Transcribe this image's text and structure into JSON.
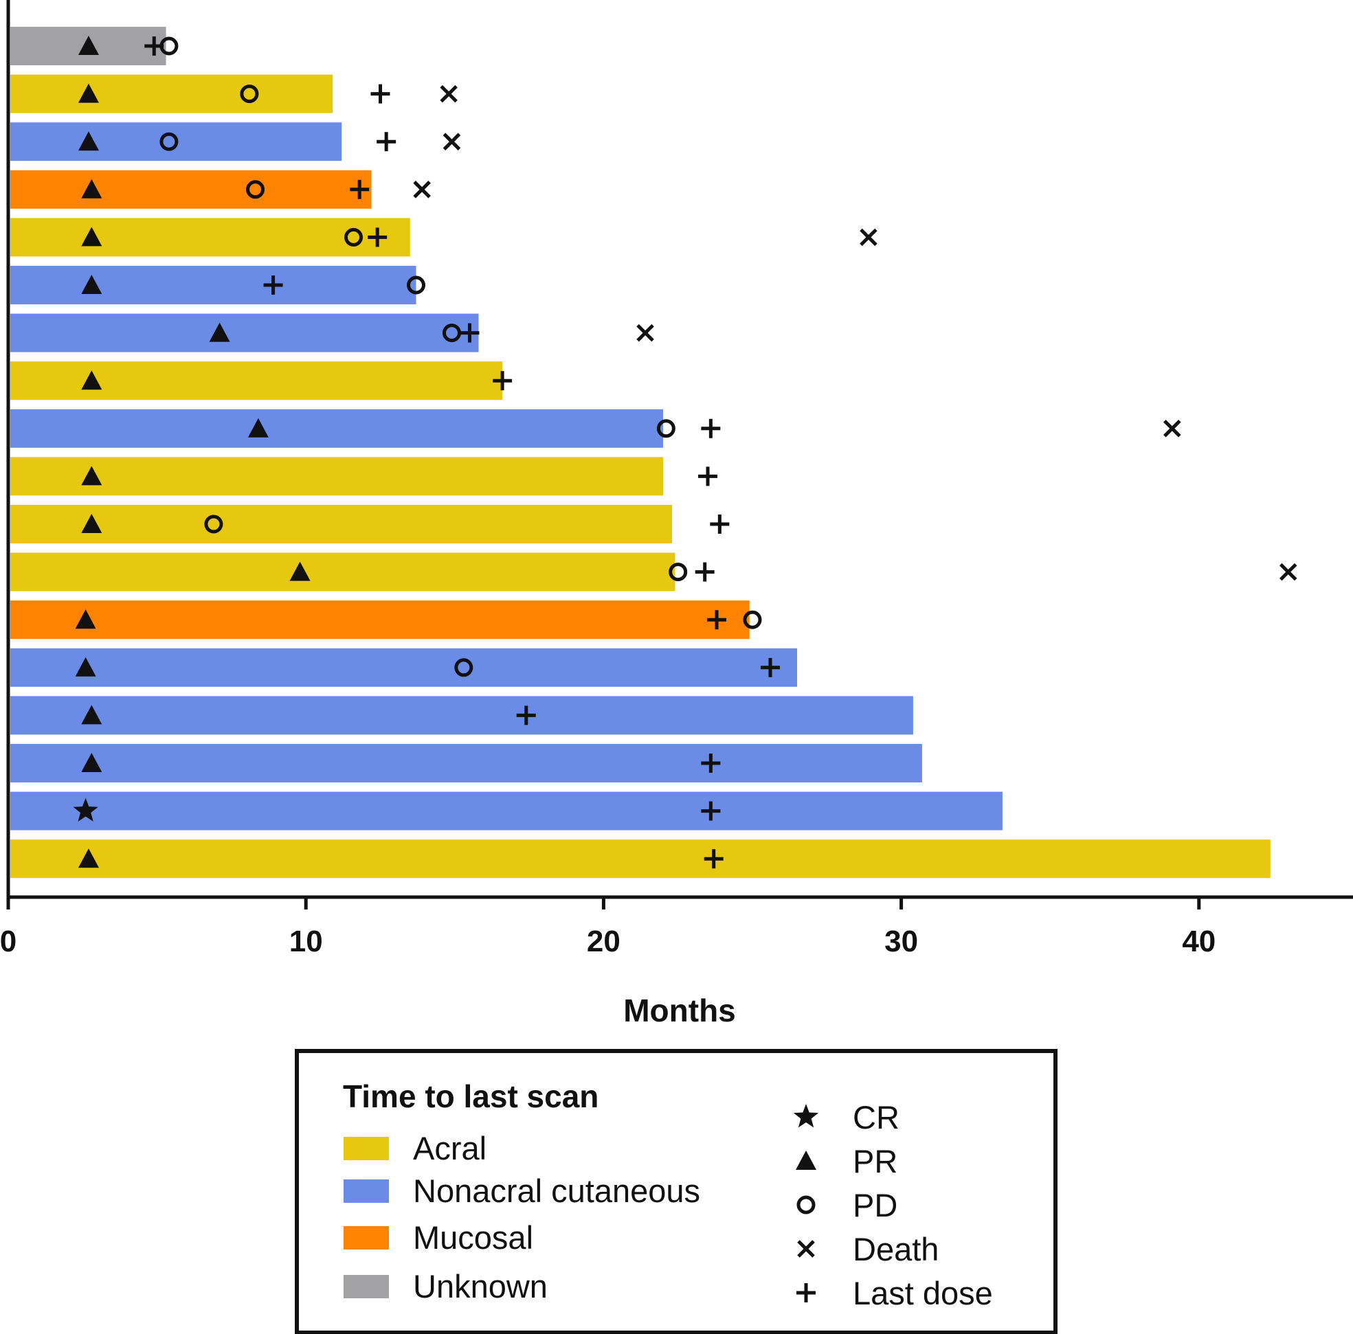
{
  "chart_data": {
    "type": "bar",
    "orientation": "horizontal",
    "title": "",
    "xlabel": "Months",
    "ylabel": "",
    "xlim": [
      0,
      45
    ],
    "x_ticks": [
      "0",
      "10",
      "20",
      "30",
      "40"
    ],
    "legend": {
      "title": "Time to last scan",
      "groups": [
        {
          "key": "acral",
          "label": "Acral",
          "color": "#E6C811"
        },
        {
          "key": "nonacral",
          "label": "Nonacral cutaneous",
          "color": "#6A8BE6"
        },
        {
          "key": "mucosal",
          "label": "Mucosal",
          "color": "#FE8300"
        },
        {
          "key": "unknown",
          "label": "Unknown",
          "color": "#A2A2A5"
        }
      ],
      "markers": [
        {
          "key": "cr",
          "label": "CR",
          "symbol": "★"
        },
        {
          "key": "pr",
          "label": "PR",
          "symbol": "▲"
        },
        {
          "key": "pd",
          "label": "PD",
          "symbol": "○"
        },
        {
          "key": "death",
          "label": "Death",
          "symbol": "×"
        },
        {
          "key": "last_dose",
          "label": "Last dose",
          "symbol": "+"
        }
      ]
    },
    "patients": [
      {
        "group": "unknown",
        "scan": 5.3,
        "pr": 2.7,
        "last_dose": 4.9,
        "pd": 5.4
      },
      {
        "group": "acral",
        "scan": 10.9,
        "pr": 2.7,
        "pd": 8.1,
        "last_dose": 12.5,
        "death": 14.8
      },
      {
        "group": "nonacral",
        "scan": 11.2,
        "pr": 2.7,
        "pd": 5.4,
        "last_dose": 12.7,
        "death": 14.9
      },
      {
        "group": "mucosal",
        "scan": 12.2,
        "pr": 2.8,
        "pd": 8.3,
        "last_dose": 11.8,
        "death": 13.9
      },
      {
        "group": "acral",
        "scan": 13.5,
        "pr": 2.8,
        "pd": 11.6,
        "last_dose": 12.4,
        "death": 28.9
      },
      {
        "group": "nonacral",
        "scan": 13.7,
        "pr": 2.8,
        "last_dose": 8.9,
        "pd": 13.7
      },
      {
        "group": "nonacral",
        "scan": 15.8,
        "pr": 7.1,
        "pd": 14.9,
        "last_dose": 15.5,
        "death": 21.4
      },
      {
        "group": "acral",
        "scan": 16.6,
        "pr": 2.8,
        "last_dose": 16.6
      },
      {
        "group": "nonacral",
        "scan": 22.0,
        "pr": 8.4,
        "pd": 22.1,
        "last_dose": 23.6,
        "death": 39.1
      },
      {
        "group": "acral",
        "scan": 22.0,
        "pr": 2.8,
        "last_dose": 23.5
      },
      {
        "group": "acral",
        "scan": 22.3,
        "pr": 2.8,
        "pd": 6.9,
        "last_dose": 23.9
      },
      {
        "group": "acral",
        "scan": 22.4,
        "pr": 9.8,
        "pd": 22.5,
        "last_dose": 23.4,
        "death": 43.0
      },
      {
        "group": "mucosal",
        "scan": 24.9,
        "pr": 2.6,
        "last_dose": 23.8,
        "pd": 25.0
      },
      {
        "group": "nonacral",
        "scan": 26.5,
        "pr": 2.6,
        "pd": 15.3,
        "last_dose": 25.6
      },
      {
        "group": "nonacral",
        "scan": 30.4,
        "pr": 2.8,
        "last_dose": 17.4
      },
      {
        "group": "nonacral",
        "scan": 30.7,
        "pr": 2.8,
        "last_dose": 23.6
      },
      {
        "group": "nonacral",
        "scan": 33.4,
        "cr": 2.6,
        "last_dose": 23.6
      },
      {
        "group": "acral",
        "scan": 42.4,
        "pr": 2.7,
        "last_dose": 23.7
      }
    ]
  }
}
